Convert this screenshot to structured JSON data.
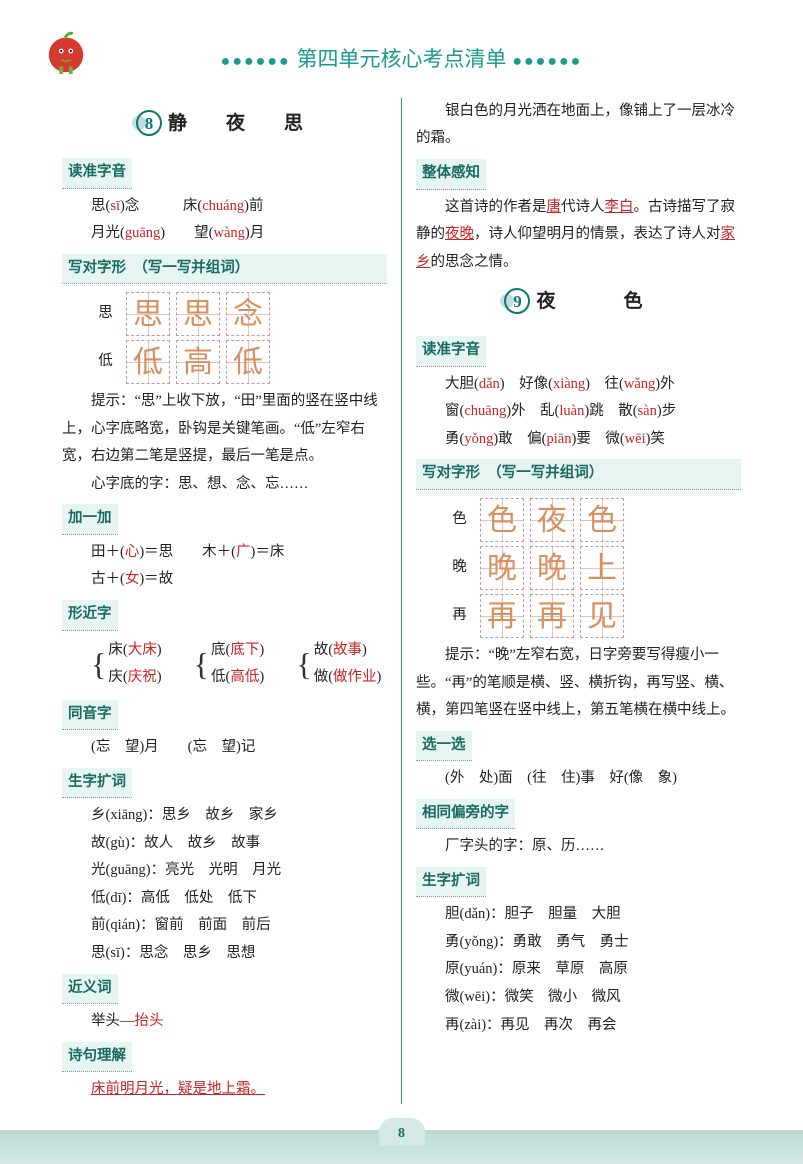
{
  "header": {
    "title": "第四单元核心考点清单"
  },
  "pageNumber": "8",
  "left": {
    "lesson": {
      "num": "8",
      "title": "静　夜　思"
    },
    "duzhun": {
      "label": "读准字音",
      "l1a": "思(",
      "l1ap": "sī",
      "l1b": ")念",
      "l1c": "床(",
      "l1cp": "chuáng",
      "l1d": ")前",
      "l2a": "月光(",
      "l2ap": "guāng",
      "l2b": ")",
      "l2c": "望(",
      "l2cp": "wàng",
      "l2d": ")月"
    },
    "xiedui": {
      "label": "写对字形　（写一写并组词）",
      "rows": [
        {
          "label": "思",
          "chars": [
            "思",
            "思",
            "念"
          ]
        },
        {
          "label": "低",
          "chars": [
            "低",
            "高",
            "低"
          ]
        }
      ],
      "tip": "提示：“思”上收下放，“田”里面的竖在竖中线上，心字底略宽，卧钩是关键笔画。“低”左窄右宽，右边第二笔是竖提，最后一笔是点。",
      "tip2": "心字底的字：思、想、念、忘……"
    },
    "jiayijia": {
      "label": "加一加",
      "l1": "田＋(",
      "l1r": "心",
      "l1b": ")＝思　　木＋(",
      "l1r2": "广",
      "l1c": ")＝床",
      "l2": "古＋(",
      "l2r": "女",
      "l2b": ")＝故"
    },
    "xingjin": {
      "label": "形近字",
      "pairs": [
        {
          "a": "床(大床)",
          "b": "庆(庆祝)"
        },
        {
          "a": "底(底下)",
          "b": "低(高低)"
        },
        {
          "a": "故(故事)",
          "b": "做(做作业)"
        }
      ]
    },
    "tongyin": {
      "label": "同音字",
      "text": "(忘　望)月　　(忘　望)记"
    },
    "shengzi": {
      "label": "生字扩词",
      "lines": [
        "乡(xiāng)：思乡　故乡　家乡",
        "故(gù)：故人　故乡　故事",
        "光(guāng)：亮光　光明　月光",
        "低(dī)：高低　低处　低下",
        "前(qián)：窗前　前面　前后",
        "思(sī)：思念　思乡　思想"
      ]
    },
    "jinyi": {
      "label": "近义词",
      "text": "举头—",
      "red": "抬头"
    },
    "shiju": {
      "label": "诗句理解",
      "text": "床前明月光，疑是地上霜。"
    }
  },
  "right": {
    "cont": "　　银白色的月光洒在地面上，像铺上了一层冰冷的霜。",
    "zhengti": {
      "label": "整体感知",
      "t1": "　　这首诗的作者是",
      "u1": "唐",
      "t2": "代诗人",
      "u2": "李白",
      "t3": "。古诗描写了寂静的",
      "u3": "夜晚",
      "t4": "，诗人仰望明月的情景，表达了诗人对",
      "u4": "家乡",
      "t5": "的思念之情。"
    },
    "lesson": {
      "num": "9",
      "title": "夜　　色"
    },
    "duzhun": {
      "label": "读准字音",
      "lines": [
        "大胆(dǎn)　好像(xiàng)　往(wǎng)外",
        "窗(chuāng)外　乱(luàn)跳　散(sàn)步",
        "勇(yǒng)敢　偏(piān)要　微(wēi)笑"
      ]
    },
    "xiedui": {
      "label": "写对字形　（写一写并组词）",
      "rows": [
        {
          "label": "色",
          "chars": [
            "色",
            "夜",
            "色"
          ]
        },
        {
          "label": "晚",
          "chars": [
            "晚",
            "晚",
            "上"
          ]
        },
        {
          "label": "再",
          "chars": [
            "再",
            "再",
            "见"
          ]
        }
      ],
      "tip": "　　提示：“晚”左窄右宽，日字旁要写得瘦小一些。“再”的笔顺是横、竖、横折钩，再写竖、横、横，第四笔竖在竖中线上，第五笔横在横中线上。"
    },
    "xuan": {
      "label": "选一选",
      "text": "(外　处)面　(往　住)事　好(像　象)"
    },
    "xiangtong": {
      "label": "相同偏旁的字",
      "text": "　　厂字头的字：原、历……"
    },
    "shengzi": {
      "label": "生字扩词",
      "lines": [
        "胆(dǎn)：胆子　胆量　大胆",
        "勇(yǒng)：勇敢　勇气　勇士",
        "原(yuán)：原来　草原　高原",
        "微(wēi)：微笑　微小　微风",
        "再(zài)：再见　再次　再会"
      ]
    }
  },
  "colors": {
    "teal": "#1a9b8e",
    "red": "#c22",
    "tan": "#d89060",
    "bg": "#e6f4f2"
  }
}
